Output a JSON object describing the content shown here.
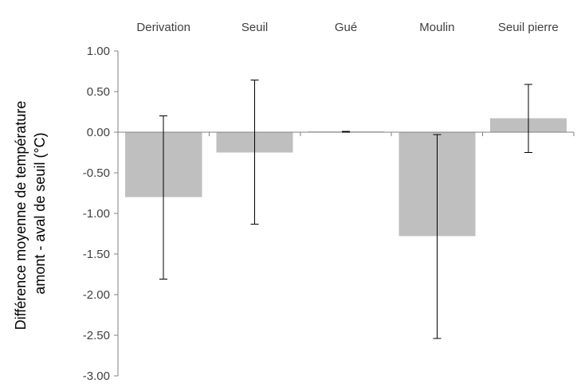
{
  "chart_data": {
    "type": "bar",
    "categories": [
      "Derivation",
      "Seuil",
      "Gué",
      "Moulin",
      "Seuil pierre"
    ],
    "values": [
      -0.8,
      -0.25,
      0.01,
      -1.28,
      0.17
    ],
    "error_bars": [
      {
        "low": -1.81,
        "high": 0.2
      },
      {
        "low": -1.13,
        "high": 0.64
      },
      {
        "low": 0.0,
        "high": 0.01
      },
      {
        "low": -2.54,
        "high": -0.03
      },
      {
        "low": -0.25,
        "high": 0.59
      }
    ],
    "ylabel_lines": [
      "Différence moyenne de température",
      "amont - aval de seuil (°C)"
    ],
    "ylim": [
      -3.0,
      1.0
    ],
    "yticks": [
      1.0,
      0.5,
      0.0,
      -0.5,
      -1.0,
      -1.5,
      -2.0,
      -2.5,
      -3.0
    ],
    "ytick_labels": [
      "1.00",
      "0.50",
      "0.00",
      "-0.50",
      "-1.00",
      "-1.50",
      "-2.00",
      "-2.50",
      "-3.00"
    ],
    "grid": false,
    "bar_color": "#bfbfbf",
    "error_color": "#000000",
    "axis_color": "#808080",
    "category_label_position": "top"
  }
}
